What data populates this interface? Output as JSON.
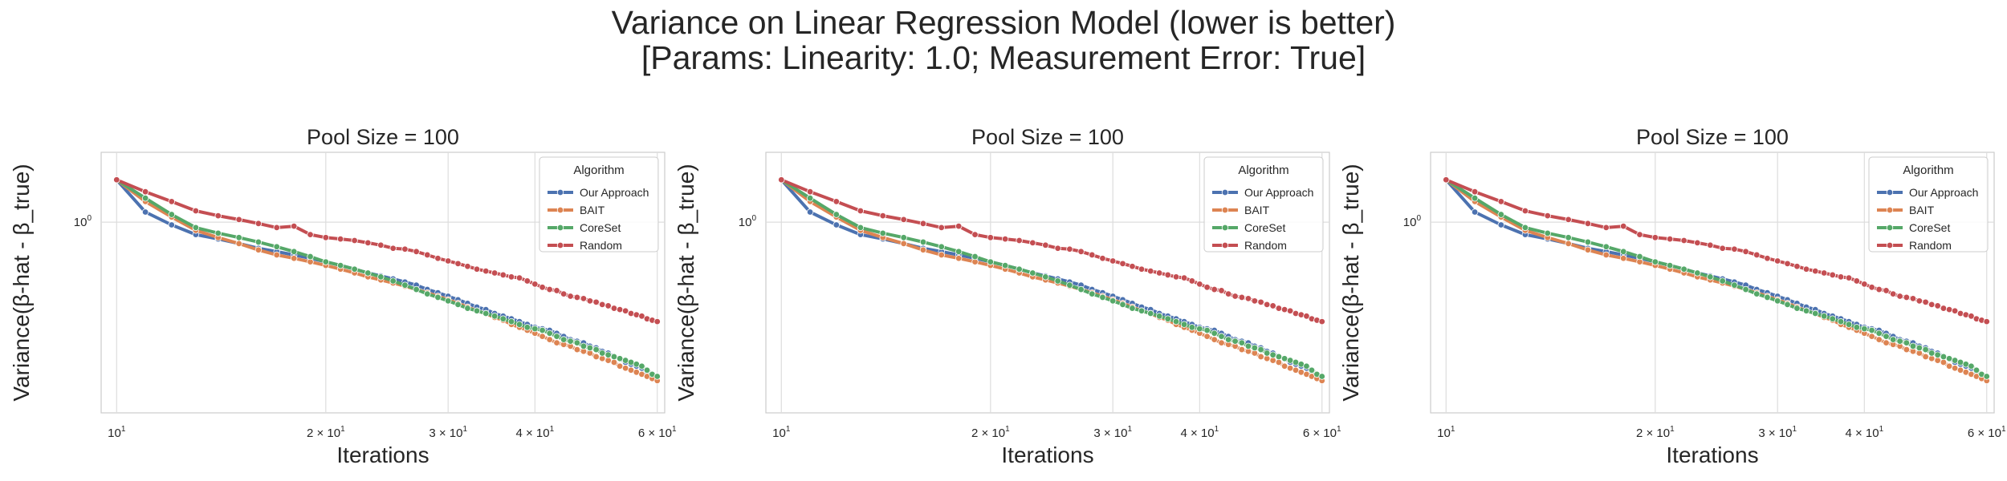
{
  "figure": {
    "title_line1": "Variance on Linear Regression Model (lower is better)",
    "title_line2": "[Params: Linearity: 1.0; Measurement Error: True]"
  },
  "colors": {
    "Our Approach": "#4c72b0",
    "BAIT": "#dd8452",
    "CoreSet": "#55a868",
    "Random": "#c44e52",
    "grid": "#dddddd",
    "frame": "#cccccc"
  },
  "chart_data": [
    {
      "type": "line",
      "title": "Pool Size = 100",
      "xlabel": "Iterations",
      "ylabel": "Variance(β-hat - β_true)",
      "xscale": "log",
      "yscale": "log",
      "xlim": [
        9.5,
        61.5
      ],
      "ylim": [
        0.235,
        1.7
      ],
      "xticks": [
        {
          "value": 10,
          "base": "10",
          "exp": "1"
        },
        {
          "value": 20,
          "base": "2 × 10",
          "exp": "1"
        },
        {
          "value": 30,
          "base": "3 × 10",
          "exp": "1"
        },
        {
          "value": 40,
          "base": "4 × 10",
          "exp": "1"
        },
        {
          "value": 60,
          "base": "6 × 10",
          "exp": "1"
        }
      ],
      "yticks": [
        {
          "value": 1,
          "base": "10",
          "exp": "0"
        }
      ],
      "grid": true,
      "legend": {
        "title": "Algorithm",
        "location": "upper right"
      },
      "x": [
        10,
        11,
        12,
        13,
        14,
        15,
        16,
        17,
        18,
        19,
        20,
        21,
        22,
        23,
        24,
        25,
        26,
        27,
        28,
        29,
        30,
        31,
        32,
        33,
        34,
        35,
        36,
        37,
        38,
        39,
        40,
        41,
        42,
        43,
        44,
        45,
        46,
        47,
        48,
        49,
        50,
        51,
        52,
        53,
        54,
        55,
        56,
        57,
        58,
        59,
        60
      ],
      "series": [
        {
          "name": "Our Approach",
          "values": [
            1.38,
            1.08,
            0.98,
            0.91,
            0.88,
            0.85,
            0.82,
            0.8,
            0.78,
            0.76,
            0.74,
            0.72,
            0.7,
            0.68,
            0.665,
            0.65,
            0.635,
            0.62,
            0.6,
            0.585,
            0.57,
            0.555,
            0.54,
            0.525,
            0.515,
            0.5,
            0.49,
            0.48,
            0.47,
            0.46,
            0.45,
            0.445,
            0.44,
            0.43,
            0.42,
            0.41,
            0.405,
            0.4,
            0.39,
            0.385,
            0.375,
            0.37,
            0.36,
            0.355,
            0.345,
            0.34,
            0.335,
            0.33,
            0.32,
            0.315,
            0.31
          ]
        },
        {
          "name": "BAIT",
          "values": [
            1.38,
            1.17,
            1.04,
            0.94,
            0.89,
            0.85,
            0.81,
            0.78,
            0.76,
            0.74,
            0.72,
            0.7,
            0.68,
            0.66,
            0.645,
            0.63,
            0.615,
            0.6,
            0.585,
            0.57,
            0.555,
            0.54,
            0.525,
            0.51,
            0.5,
            0.485,
            0.475,
            0.46,
            0.45,
            0.44,
            0.43,
            0.42,
            0.41,
            0.4,
            0.395,
            0.39,
            0.38,
            0.375,
            0.37,
            0.36,
            0.355,
            0.35,
            0.345,
            0.335,
            0.33,
            0.325,
            0.32,
            0.315,
            0.31,
            0.305,
            0.3
          ]
        },
        {
          "name": "CoreSet",
          "values": [
            1.38,
            1.2,
            1.06,
            0.96,
            0.92,
            0.89,
            0.86,
            0.83,
            0.8,
            0.77,
            0.74,
            0.72,
            0.7,
            0.68,
            0.66,
            0.64,
            0.62,
            0.6,
            0.58,
            0.565,
            0.55,
            0.535,
            0.52,
            0.51,
            0.5,
            0.49,
            0.48,
            0.47,
            0.46,
            0.45,
            0.445,
            0.44,
            0.43,
            0.42,
            0.41,
            0.405,
            0.4,
            0.39,
            0.385,
            0.38,
            0.37,
            0.365,
            0.36,
            0.355,
            0.35,
            0.345,
            0.34,
            0.335,
            0.325,
            0.315,
            0.31
          ]
        },
        {
          "name": "Random",
          "values": [
            1.38,
            1.26,
            1.17,
            1.09,
            1.05,
            1.02,
            0.99,
            0.96,
            0.97,
            0.91,
            0.89,
            0.88,
            0.87,
            0.855,
            0.84,
            0.82,
            0.815,
            0.8,
            0.78,
            0.76,
            0.745,
            0.73,
            0.715,
            0.7,
            0.69,
            0.68,
            0.67,
            0.66,
            0.655,
            0.64,
            0.625,
            0.61,
            0.6,
            0.595,
            0.58,
            0.57,
            0.565,
            0.56,
            0.55,
            0.545,
            0.535,
            0.53,
            0.52,
            0.515,
            0.51,
            0.5,
            0.495,
            0.49,
            0.48,
            0.475,
            0.47
          ]
        }
      ]
    },
    {
      "type": "line",
      "title": "Pool Size = 100",
      "xlabel": "Iterations",
      "ylabel": "Variance(β-hat - β_true)",
      "xscale": "log",
      "yscale": "log",
      "xlim": [
        9.5,
        61.5
      ],
      "ylim": [
        0.235,
        1.7
      ],
      "xticks": [
        {
          "value": 10,
          "base": "10",
          "exp": "1"
        },
        {
          "value": 20,
          "base": "2 × 10",
          "exp": "1"
        },
        {
          "value": 30,
          "base": "3 × 10",
          "exp": "1"
        },
        {
          "value": 40,
          "base": "4 × 10",
          "exp": "1"
        },
        {
          "value": 60,
          "base": "6 × 10",
          "exp": "1"
        }
      ],
      "yticks": [
        {
          "value": 1,
          "base": "10",
          "exp": "0"
        }
      ],
      "grid": true,
      "legend": {
        "title": "Algorithm",
        "location": "upper right"
      },
      "x": [
        10,
        11,
        12,
        13,
        14,
        15,
        16,
        17,
        18,
        19,
        20,
        21,
        22,
        23,
        24,
        25,
        26,
        27,
        28,
        29,
        30,
        31,
        32,
        33,
        34,
        35,
        36,
        37,
        38,
        39,
        40,
        41,
        42,
        43,
        44,
        45,
        46,
        47,
        48,
        49,
        50,
        51,
        52,
        53,
        54,
        55,
        56,
        57,
        58,
        59,
        60
      ],
      "series": [
        {
          "name": "Our Approach",
          "values": [
            1.38,
            1.08,
            0.98,
            0.91,
            0.88,
            0.85,
            0.82,
            0.8,
            0.78,
            0.76,
            0.74,
            0.72,
            0.7,
            0.68,
            0.665,
            0.65,
            0.635,
            0.62,
            0.6,
            0.585,
            0.57,
            0.555,
            0.54,
            0.525,
            0.515,
            0.5,
            0.49,
            0.48,
            0.47,
            0.46,
            0.45,
            0.445,
            0.44,
            0.43,
            0.42,
            0.41,
            0.405,
            0.4,
            0.39,
            0.385,
            0.375,
            0.37,
            0.36,
            0.355,
            0.345,
            0.34,
            0.335,
            0.33,
            0.32,
            0.315,
            0.31
          ]
        },
        {
          "name": "BAIT",
          "values": [
            1.38,
            1.17,
            1.04,
            0.94,
            0.89,
            0.85,
            0.81,
            0.78,
            0.76,
            0.74,
            0.72,
            0.7,
            0.68,
            0.66,
            0.645,
            0.63,
            0.615,
            0.6,
            0.585,
            0.57,
            0.555,
            0.54,
            0.525,
            0.51,
            0.5,
            0.485,
            0.475,
            0.46,
            0.45,
            0.44,
            0.43,
            0.42,
            0.41,
            0.4,
            0.395,
            0.39,
            0.38,
            0.375,
            0.37,
            0.36,
            0.355,
            0.35,
            0.345,
            0.335,
            0.33,
            0.325,
            0.32,
            0.315,
            0.31,
            0.305,
            0.3
          ]
        },
        {
          "name": "CoreSet",
          "values": [
            1.38,
            1.2,
            1.06,
            0.96,
            0.92,
            0.89,
            0.86,
            0.83,
            0.8,
            0.77,
            0.74,
            0.72,
            0.7,
            0.68,
            0.66,
            0.64,
            0.62,
            0.6,
            0.58,
            0.565,
            0.55,
            0.535,
            0.52,
            0.51,
            0.5,
            0.49,
            0.48,
            0.47,
            0.46,
            0.45,
            0.445,
            0.44,
            0.43,
            0.42,
            0.41,
            0.405,
            0.4,
            0.39,
            0.385,
            0.38,
            0.37,
            0.365,
            0.36,
            0.355,
            0.35,
            0.345,
            0.34,
            0.335,
            0.325,
            0.315,
            0.31
          ]
        },
        {
          "name": "Random",
          "values": [
            1.38,
            1.26,
            1.17,
            1.09,
            1.05,
            1.02,
            0.99,
            0.96,
            0.97,
            0.91,
            0.89,
            0.88,
            0.87,
            0.855,
            0.84,
            0.82,
            0.815,
            0.8,
            0.78,
            0.76,
            0.745,
            0.73,
            0.715,
            0.7,
            0.69,
            0.68,
            0.67,
            0.66,
            0.655,
            0.64,
            0.625,
            0.61,
            0.6,
            0.595,
            0.58,
            0.57,
            0.565,
            0.56,
            0.55,
            0.545,
            0.535,
            0.53,
            0.52,
            0.515,
            0.51,
            0.5,
            0.495,
            0.49,
            0.48,
            0.475,
            0.47
          ]
        }
      ]
    },
    {
      "type": "line",
      "title": "Pool Size = 100",
      "xlabel": "Iterations",
      "ylabel": "Variance(β-hat - β_true)",
      "xscale": "log",
      "yscale": "log",
      "xlim": [
        9.5,
        61.5
      ],
      "ylim": [
        0.235,
        1.7
      ],
      "xticks": [
        {
          "value": 10,
          "base": "10",
          "exp": "1"
        },
        {
          "value": 20,
          "base": "2 × 10",
          "exp": "1"
        },
        {
          "value": 30,
          "base": "3 × 10",
          "exp": "1"
        },
        {
          "value": 40,
          "base": "4 × 10",
          "exp": "1"
        },
        {
          "value": 60,
          "base": "6 × 10",
          "exp": "1"
        }
      ],
      "yticks": [
        {
          "value": 1,
          "base": "10",
          "exp": "0"
        }
      ],
      "grid": true,
      "legend": {
        "title": "Algorithm",
        "location": "upper right"
      },
      "x": [
        10,
        11,
        12,
        13,
        14,
        15,
        16,
        17,
        18,
        19,
        20,
        21,
        22,
        23,
        24,
        25,
        26,
        27,
        28,
        29,
        30,
        31,
        32,
        33,
        34,
        35,
        36,
        37,
        38,
        39,
        40,
        41,
        42,
        43,
        44,
        45,
        46,
        47,
        48,
        49,
        50,
        51,
        52,
        53,
        54,
        55,
        56,
        57,
        58,
        59,
        60
      ],
      "series": [
        {
          "name": "Our Approach",
          "values": [
            1.38,
            1.08,
            0.98,
            0.91,
            0.88,
            0.85,
            0.82,
            0.8,
            0.78,
            0.76,
            0.74,
            0.72,
            0.7,
            0.68,
            0.665,
            0.65,
            0.635,
            0.62,
            0.6,
            0.585,
            0.57,
            0.555,
            0.54,
            0.525,
            0.515,
            0.5,
            0.49,
            0.48,
            0.47,
            0.46,
            0.45,
            0.445,
            0.44,
            0.43,
            0.42,
            0.41,
            0.405,
            0.4,
            0.39,
            0.385,
            0.375,
            0.37,
            0.36,
            0.355,
            0.345,
            0.34,
            0.335,
            0.33,
            0.32,
            0.315,
            0.31
          ]
        },
        {
          "name": "BAIT",
          "values": [
            1.38,
            1.17,
            1.04,
            0.94,
            0.89,
            0.85,
            0.81,
            0.78,
            0.76,
            0.74,
            0.72,
            0.7,
            0.68,
            0.66,
            0.645,
            0.63,
            0.615,
            0.6,
            0.585,
            0.57,
            0.555,
            0.54,
            0.525,
            0.51,
            0.5,
            0.485,
            0.475,
            0.46,
            0.45,
            0.44,
            0.43,
            0.42,
            0.41,
            0.4,
            0.395,
            0.39,
            0.38,
            0.375,
            0.37,
            0.36,
            0.355,
            0.35,
            0.345,
            0.335,
            0.33,
            0.325,
            0.32,
            0.315,
            0.31,
            0.305,
            0.3
          ]
        },
        {
          "name": "CoreSet",
          "values": [
            1.38,
            1.2,
            1.06,
            0.96,
            0.92,
            0.89,
            0.86,
            0.83,
            0.8,
            0.77,
            0.74,
            0.72,
            0.7,
            0.68,
            0.66,
            0.64,
            0.62,
            0.6,
            0.58,
            0.565,
            0.55,
            0.535,
            0.52,
            0.51,
            0.5,
            0.49,
            0.48,
            0.47,
            0.46,
            0.45,
            0.445,
            0.44,
            0.43,
            0.42,
            0.41,
            0.405,
            0.4,
            0.39,
            0.385,
            0.38,
            0.37,
            0.365,
            0.36,
            0.355,
            0.35,
            0.345,
            0.34,
            0.335,
            0.325,
            0.315,
            0.31
          ]
        },
        {
          "name": "Random",
          "values": [
            1.38,
            1.26,
            1.17,
            1.09,
            1.05,
            1.02,
            0.99,
            0.96,
            0.97,
            0.91,
            0.89,
            0.88,
            0.87,
            0.855,
            0.84,
            0.82,
            0.815,
            0.8,
            0.78,
            0.76,
            0.745,
            0.73,
            0.715,
            0.7,
            0.69,
            0.68,
            0.67,
            0.66,
            0.655,
            0.64,
            0.625,
            0.61,
            0.6,
            0.595,
            0.58,
            0.57,
            0.565,
            0.56,
            0.55,
            0.545,
            0.535,
            0.53,
            0.52,
            0.515,
            0.51,
            0.5,
            0.495,
            0.49,
            0.48,
            0.475,
            0.47
          ]
        }
      ]
    }
  ]
}
